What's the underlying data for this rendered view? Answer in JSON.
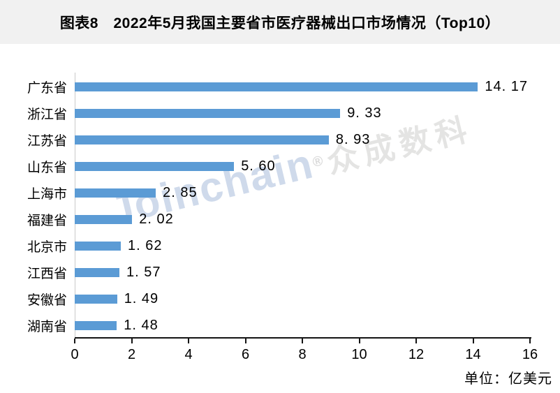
{
  "header": {
    "title": "图表8　2022年5月我国主要省市医疗器械出口市场情况（Top10）"
  },
  "watermark": {
    "latin": "Joinchain",
    "reg": "®",
    "cjk": "众成数科"
  },
  "footer": {
    "unit_label": "单位：亿美元"
  },
  "colors": {
    "bar": "#5B9BD5",
    "title_bar_bg": "#F1F1F1",
    "x_axis_line": "#141414",
    "y_axis_line": "#C9C9C9",
    "watermark_latin": "#CFDAEB",
    "watermark_cjk": "#E4E4E3",
    "text": "#000000"
  },
  "chart_data": {
    "type": "bar",
    "orientation": "horizontal",
    "title": "图表8　2022年5月我国主要省市医疗器械出口市场情况（Top10）",
    "categories": [
      "广东省",
      "浙江省",
      "江苏省",
      "山东省",
      "上海市",
      "福建省",
      "北京市",
      "江西省",
      "安徽省",
      "湖南省"
    ],
    "values": [
      14.17,
      9.33,
      8.93,
      5.6,
      2.85,
      2.02,
      1.62,
      1.57,
      1.49,
      1.48
    ],
    "value_labels": [
      "14. 17",
      "9. 33",
      "8. 93",
      "5. 60",
      "2. 85",
      "2. 02",
      "1. 62",
      "1. 57",
      "1. 49",
      "1. 48"
    ],
    "xlabel": "",
    "ylabel": "",
    "xlim": [
      0,
      16
    ],
    "xticks": [
      0,
      2,
      4,
      6,
      8,
      10,
      12,
      14,
      16
    ],
    "unit": "亿美元",
    "grid": false,
    "legend": false,
    "bar_color": "#5B9BD5"
  }
}
